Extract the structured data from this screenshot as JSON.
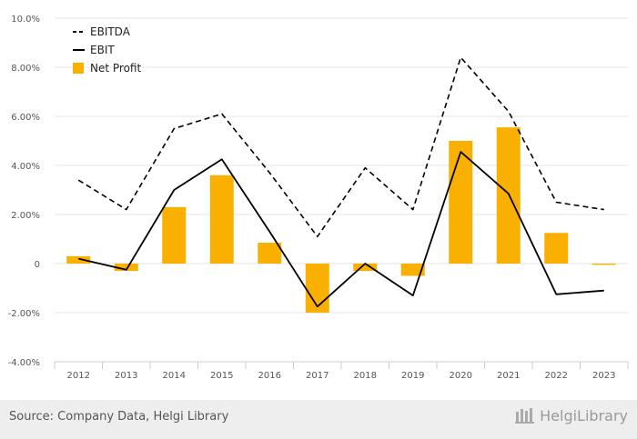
{
  "chart_data": {
    "type": "bar",
    "categories": [
      "2012",
      "2013",
      "2014",
      "2015",
      "2016",
      "2017",
      "2018",
      "2019",
      "2020",
      "2021",
      "2022",
      "2023"
    ],
    "y_ticks": [
      "10.0%",
      "8.00%",
      "6.00%",
      "4.00%",
      "2.00%",
      "0",
      "-2.00%",
      "-4.00%"
    ],
    "ylim": [
      -4,
      10
    ],
    "grid": true,
    "legend_position": "top-left",
    "series": [
      {
        "name": "EBITDA",
        "kind": "line",
        "style": "dashed",
        "color": "#000000",
        "values": [
          3.4,
          2.2,
          5.5,
          6.1,
          3.7,
          1.1,
          3.9,
          2.2,
          8.4,
          6.2,
          2.5,
          2.2
        ]
      },
      {
        "name": "EBIT",
        "kind": "line",
        "style": "solid",
        "color": "#000000",
        "values": [
          0.2,
          -0.25,
          3.0,
          4.25,
          1.3,
          -1.75,
          0.0,
          -1.3,
          4.55,
          2.85,
          -1.25,
          -1.1
        ]
      },
      {
        "name": "Net Profit",
        "kind": "bar",
        "color": "#F9B000",
        "values": [
          0.3,
          -0.3,
          2.3,
          3.6,
          0.85,
          -2.0,
          -0.3,
          -0.5,
          5.0,
          5.55,
          1.25,
          -0.05
        ]
      }
    ]
  },
  "footer": {
    "source": "Source: Company Data, Helgi Library",
    "brand": "HelgiLibrary"
  }
}
